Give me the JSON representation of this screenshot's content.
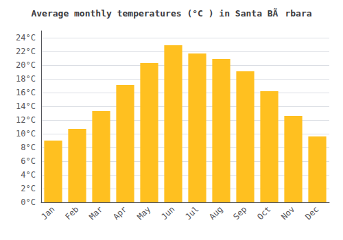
{
  "chart_data": {
    "type": "bar",
    "title": "Average monthly temperatures (°C ) in Santa BÃrbara",
    "categories": [
      "Jan",
      "Feb",
      "Mar",
      "Apr",
      "May",
      "Jun",
      "Jul",
      "Aug",
      "Sep",
      "Oct",
      "Nov",
      "Dec"
    ],
    "values": [
      9.0,
      10.7,
      13.3,
      17.1,
      20.3,
      22.9,
      21.7,
      20.9,
      19.1,
      16.2,
      12.6,
      9.6
    ],
    "color": "#FFC020",
    "ylim": [
      0,
      25
    ],
    "yticks": [
      {
        "value": 0,
        "label": "0°C"
      },
      {
        "value": 2,
        "label": "2°C"
      },
      {
        "value": 4,
        "label": "4°C"
      },
      {
        "value": 6,
        "label": "6°C"
      },
      {
        "value": 8,
        "label": "8°C"
      },
      {
        "value": 10,
        "label": "10°C"
      },
      {
        "value": 12,
        "label": "12°C"
      },
      {
        "value": 14,
        "label": "14°C"
      },
      {
        "value": 16,
        "label": "16°C"
      },
      {
        "value": 18,
        "label": "18°C"
      },
      {
        "value": 20,
        "label": "20°C"
      },
      {
        "value": 22,
        "label": "22°C"
      },
      {
        "value": 24,
        "label": "24°C"
      }
    ],
    "grid": true
  }
}
